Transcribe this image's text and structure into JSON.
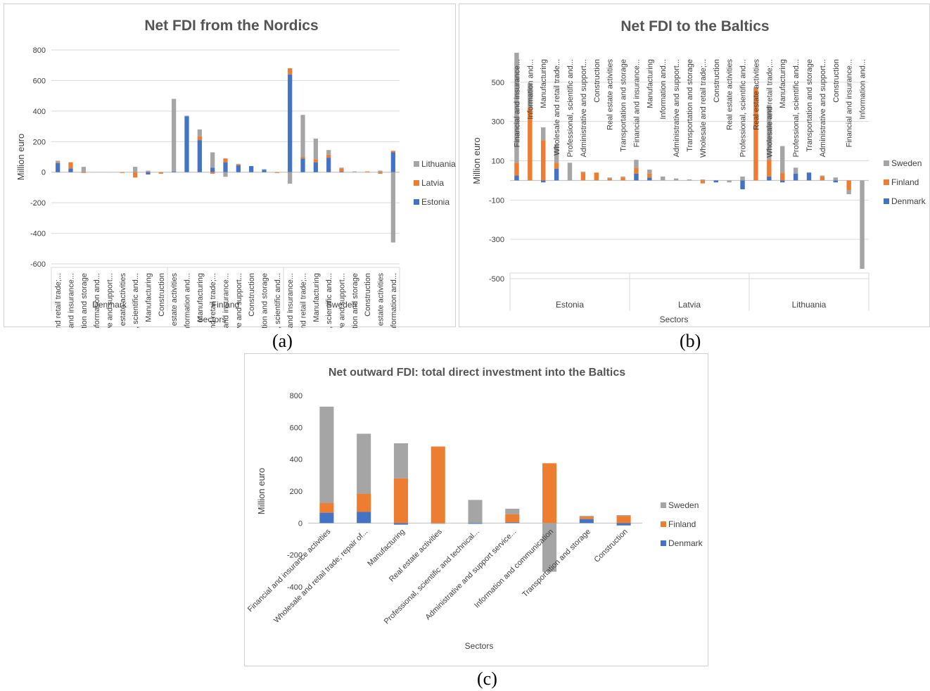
{
  "colors": {
    "Denmark": "#4472C4",
    "Finland": "#ED7D31",
    "Sweden": "#A5A5A5",
    "Estonia": "#4472C4",
    "Latvia": "#ED7D31",
    "Lithuania": "#A5A5A5",
    "grid": "#d9d9d9",
    "axis_text": "#404040",
    "title": "#555555"
  },
  "captions": {
    "a": "(a)",
    "b": "(b)",
    "c": "(c)"
  },
  "chart_data": [
    {
      "id": "a",
      "type": "bar",
      "stacked": true,
      "title": "Net FDI from the Nordics",
      "xlabel": "Sectors",
      "ylabel": "Million euro",
      "ylim": [
        -600,
        800
      ],
      "yticks": [
        800,
        600,
        400,
        200,
        0,
        -200,
        -400,
        -600
      ],
      "grid": true,
      "legend_position": "right",
      "groups": [
        {
          "name": "Denmark",
          "categories": [
            "Wholesale and retail trade;...",
            "Financial and insurance...",
            "Transportation and storage",
            "Information and...",
            "Administrative and support...",
            "Real estate activities",
            "Professional, scientific and...",
            "Manufacturing",
            "Construction"
          ]
        },
        {
          "name": "Finland",
          "categories": [
            "Real estate activities",
            "Information and...",
            "Manufacturing",
            "Wholesale and retail trade;...",
            "Financial and insurance...",
            "Administrative and support...",
            "Construction",
            "Transportation and storage",
            "Professional, scientific and..."
          ]
        },
        {
          "name": "Sweden",
          "categories": [
            "Financial and insurance...",
            "Wholesale and retail trade;...",
            "Manufacturing",
            "Professional, scientific and...",
            "Administrative and support...",
            "Transportation and storage",
            "Construction",
            "Real estate activities",
            "Information and..."
          ]
        }
      ],
      "series": [
        {
          "name": "Estonia",
          "values": [
            60,
            25,
            0,
            0,
            0,
            0,
            0,
            -15,
            0,
            5,
            365,
            210,
            30,
            65,
            45,
            40,
            15,
            0,
            640,
            90,
            65,
            95,
            5,
            0,
            0,
            0,
            130
          ]
        },
        {
          "name": "Latvia",
          "values": [
            5,
            40,
            -5,
            0,
            0,
            -5,
            -35,
            5,
            -10,
            0,
            0,
            25,
            -10,
            25,
            5,
            0,
            0,
            -5,
            40,
            10,
            20,
            20,
            20,
            0,
            5,
            -10,
            10
          ]
        },
        {
          "name": "Lithuania",
          "values": [
            10,
            0,
            35,
            0,
            0,
            0,
            35,
            5,
            0,
            475,
            5,
            45,
            100,
            -30,
            5,
            0,
            5,
            0,
            -75,
            275,
            135,
            30,
            5,
            5,
            0,
            10,
            -460
          ]
        }
      ]
    },
    {
      "id": "b",
      "type": "bar",
      "stacked": true,
      "title": "Net FDI to the Baltics",
      "xlabel": "Sectors",
      "ylabel": "Million euro",
      "ylim": [
        -500,
        700
      ],
      "yticks": [
        500,
        300,
        100,
        -100,
        -300,
        -500
      ],
      "grid": true,
      "legend_position": "right",
      "groups": [
        {
          "name": "Estonia",
          "categories": [
            "Financial and insurance...",
            "Information and...",
            "Manufacturing",
            "Wholesale and retail trade...",
            "Professional, scientific and...",
            "Administrative and support...",
            "Construction",
            "Real estate activities",
            "Transportation and storage"
          ]
        },
        {
          "name": "Latvia",
          "categories": [
            "Financial and insurance...",
            "Manufacturing",
            "Information and...",
            "Administrative and support...",
            "Transportation and storage",
            "Wholesale and retail trade;...",
            "Construction",
            "Real estate activities",
            "Professional, scientific and..."
          ]
        },
        {
          "name": "Lithuania",
          "categories": [
            "Real estate activities",
            "Wholesale and retail trade;...",
            "Manufacturing",
            "Professional, scientific and...",
            "Transportation and storage",
            "Administrative and support...",
            "Construction",
            "Financial and insurance...",
            "Information and..."
          ]
        }
      ],
      "series": [
        {
          "name": "Denmark",
          "values": [
            25,
            0,
            -10,
            60,
            0,
            0,
            0,
            0,
            0,
            35,
            15,
            0,
            0,
            0,
            0,
            -10,
            0,
            -45,
            0,
            20,
            -10,
            35,
            40,
            0,
            -10,
            0,
            0
          ]
        },
        {
          "name": "Finland",
          "values": [
            65,
            370,
            205,
            30,
            0,
            40,
            40,
            10,
            15,
            30,
            20,
            0,
            0,
            0,
            -15,
            0,
            0,
            0,
            470,
            85,
            40,
            0,
            0,
            20,
            0,
            -50,
            0
          ]
        },
        {
          "name": "Sweden",
          "values": [
            560,
            125,
            65,
            95,
            90,
            5,
            0,
            5,
            5,
            40,
            20,
            20,
            10,
            5,
            5,
            0,
            -10,
            20,
            5,
            280,
            135,
            30,
            0,
            5,
            15,
            -20,
            -450
          ]
        }
      ]
    },
    {
      "id": "c",
      "type": "bar",
      "stacked": true,
      "title": "Net outward FDI: total direct investment into the Baltics",
      "xlabel": "Sectors",
      "ylabel": "Million euro",
      "ylim": [
        -400,
        800
      ],
      "yticks": [
        800,
        600,
        400,
        200,
        0,
        -200,
        -400
      ],
      "grid": false,
      "legend_position": "right",
      "categories": [
        "Financial and insurance activities",
        "Wholesale and retail trade; repair of...",
        "Manufacturing",
        "Real estate activities",
        "Professional, scientific and technical...",
        "Administrative and support service...",
        "Information and communication",
        "Transportation and storage",
        "Construction"
      ],
      "series": [
        {
          "name": "Denmark",
          "values": [
            65,
            70,
            -10,
            0,
            -5,
            5,
            0,
            25,
            -15
          ]
        },
        {
          "name": "Finland",
          "values": [
            60,
            115,
            280,
            480,
            0,
            50,
            375,
            15,
            45
          ]
        },
        {
          "name": "Sweden",
          "values": [
            605,
            375,
            220,
            -5,
            145,
            35,
            -305,
            5,
            5
          ]
        }
      ]
    }
  ]
}
